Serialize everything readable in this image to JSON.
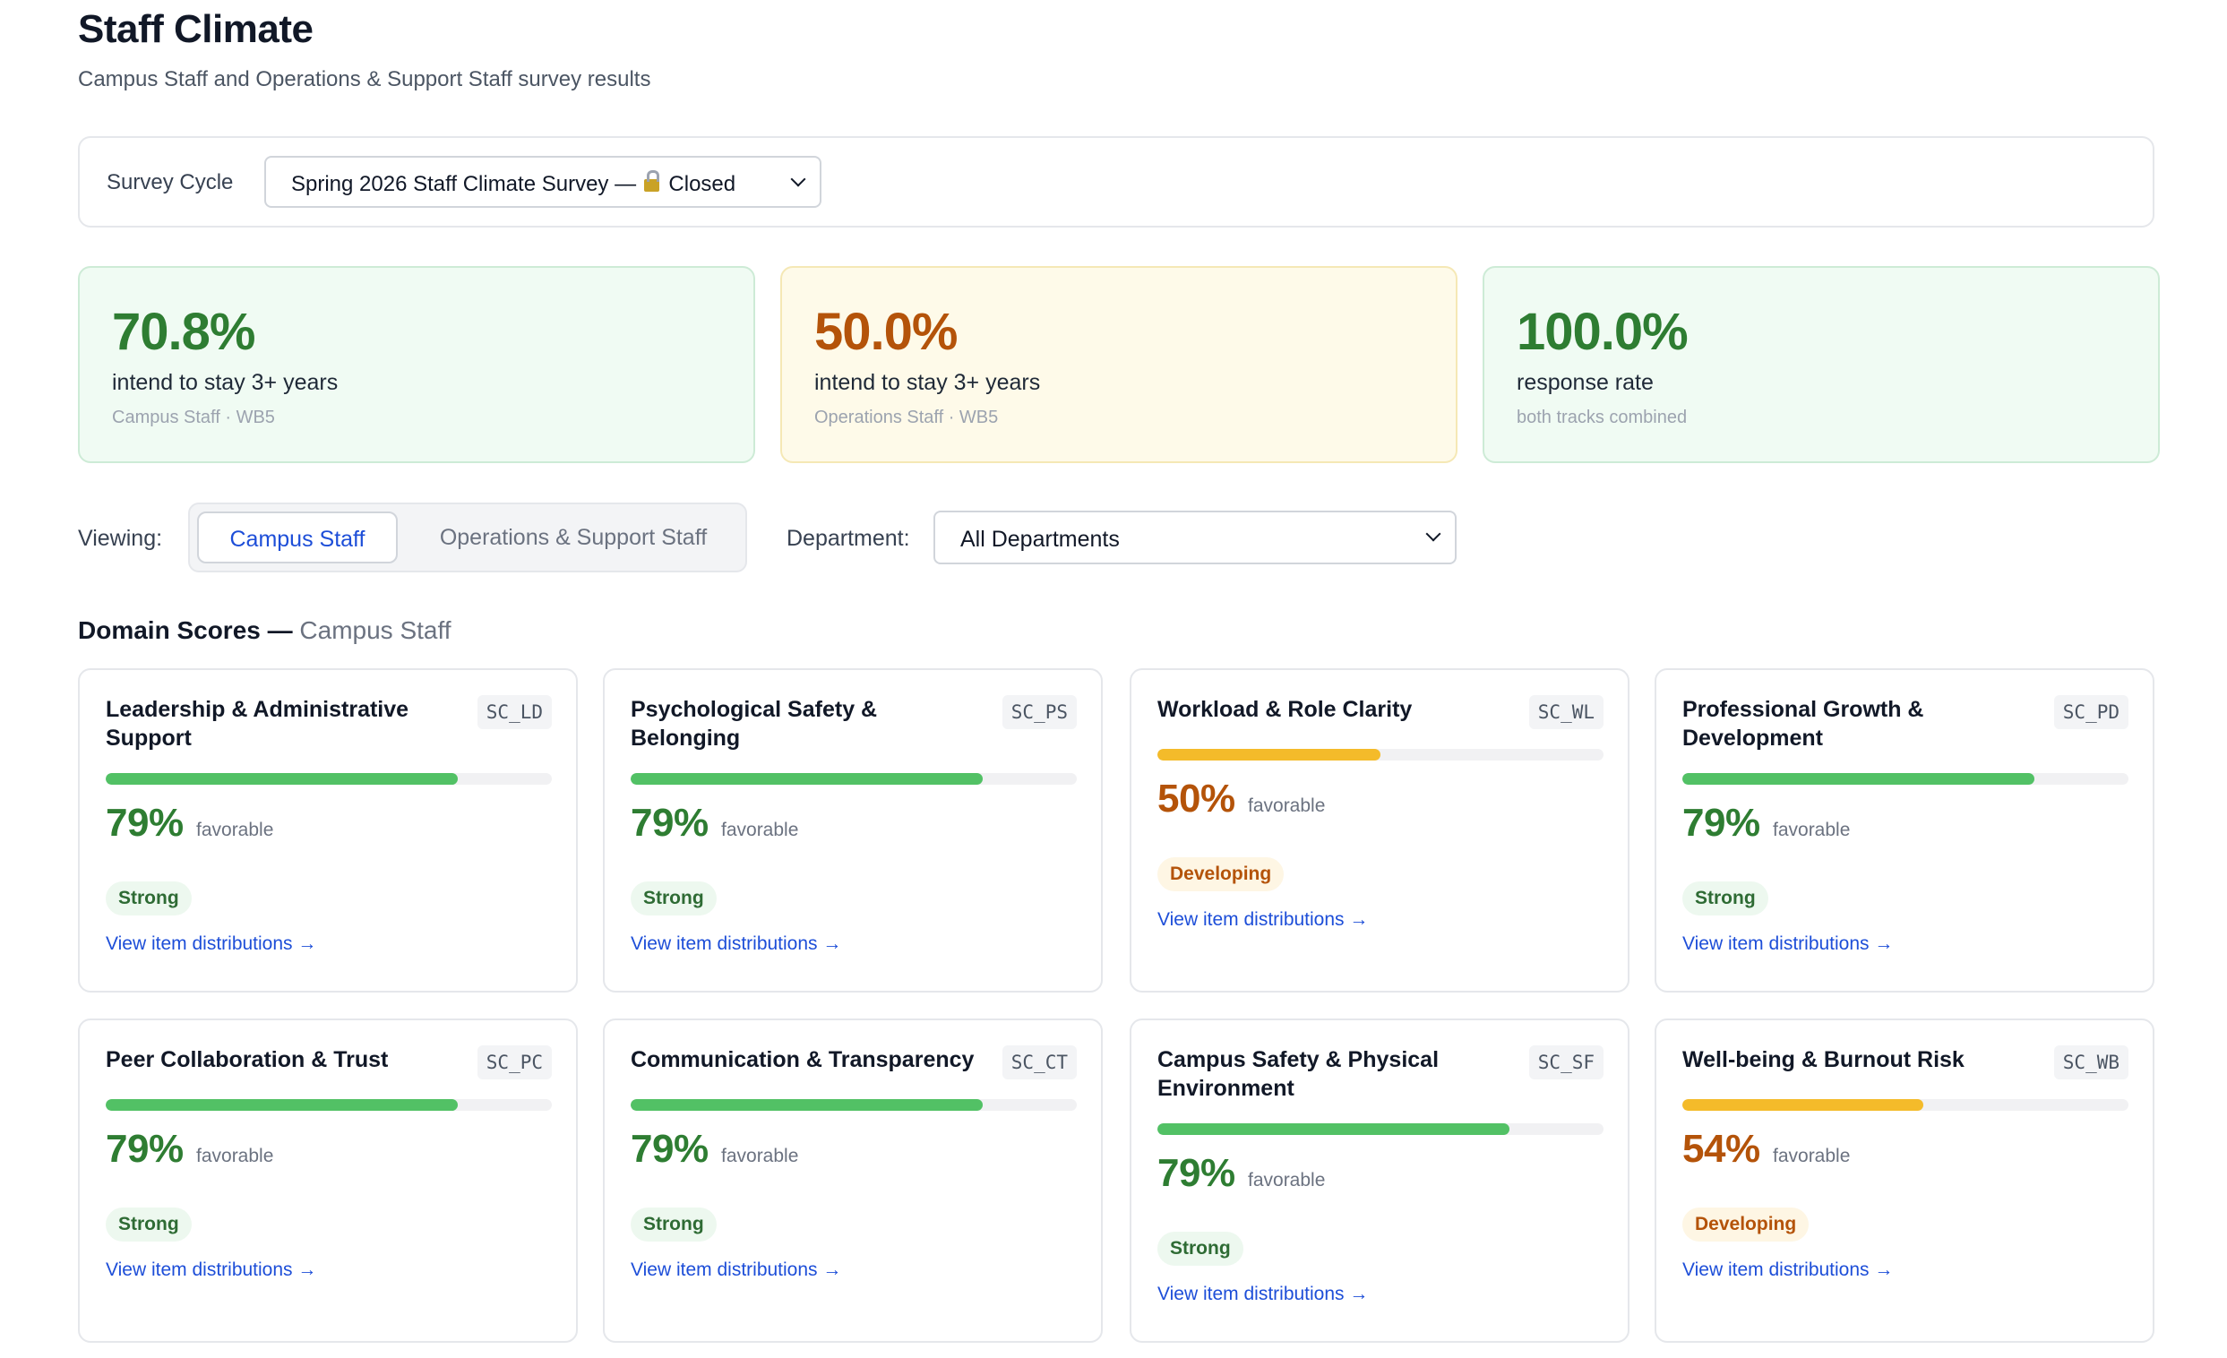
{
  "header": {
    "title": "Staff Climate",
    "subtitle": "Campus Staff and Operations & Support Staff survey results"
  },
  "survey_cycle": {
    "label": "Survey Cycle",
    "selected_prefix": "Spring 2026 Staff Climate Survey — ",
    "status": "Closed",
    "status_icon": "lock-icon"
  },
  "stats": [
    {
      "value": "70.8%",
      "label": "intend to stay 3+ years",
      "sub": "Campus Staff · WB5",
      "tone": "green"
    },
    {
      "value": "50.0%",
      "label": "intend to stay 3+ years",
      "sub": "Operations Staff · WB5",
      "tone": "amber"
    },
    {
      "value": "100.0%",
      "label": "response rate",
      "sub": "both tracks combined",
      "tone": "green"
    }
  ],
  "filters": {
    "viewing_label": "Viewing:",
    "tabs": [
      {
        "label": "Campus Staff",
        "active": true
      },
      {
        "label": "Operations & Support Staff",
        "active": false
      }
    ],
    "department_label": "Department:",
    "department_selected": "All Departments"
  },
  "section": {
    "title": "Domain Scores — ",
    "track": "Campus Staff"
  },
  "colors": {
    "green": "#2e7d32",
    "amber": "#b45309",
    "link": "#1d4ed8",
    "bar_green": "#52c165",
    "bar_amber": "#f4bb2a"
  },
  "domains": [
    {
      "title": "Leadership & Administrative Support",
      "code": "SC_LD",
      "percent": 79,
      "percent_label": "79%",
      "favorable": "favorable",
      "status": "Strong",
      "tone": "green",
      "link": "View item distributions →"
    },
    {
      "title": "Psychological Safety & Belonging",
      "code": "SC_PS",
      "percent": 79,
      "percent_label": "79%",
      "favorable": "favorable",
      "status": "Strong",
      "tone": "green",
      "link": "View item distributions →"
    },
    {
      "title": "Workload & Role Clarity",
      "code": "SC_WL",
      "percent": 50,
      "percent_label": "50%",
      "favorable": "favorable",
      "status": "Developing",
      "tone": "amber",
      "link": "View item distributions →"
    },
    {
      "title": "Professional Growth & Development",
      "code": "SC_PD",
      "percent": 79,
      "percent_label": "79%",
      "favorable": "favorable",
      "status": "Strong",
      "tone": "green",
      "link": "View item distributions →"
    },
    {
      "title": "Peer Collaboration & Trust",
      "code": "SC_PC",
      "percent": 79,
      "percent_label": "79%",
      "favorable": "favorable",
      "status": "Strong",
      "tone": "green",
      "link": "View item distributions →"
    },
    {
      "title": "Communication & Transparency",
      "code": "SC_CT",
      "percent": 79,
      "percent_label": "79%",
      "favorable": "favorable",
      "status": "Strong",
      "tone": "green",
      "link": "View item distributions →"
    },
    {
      "title": "Campus Safety & Physical Environment",
      "code": "SC_SF",
      "percent": 79,
      "percent_label": "79%",
      "favorable": "favorable",
      "status": "Strong",
      "tone": "green",
      "link": "View item distributions →"
    },
    {
      "title": "Well-being & Burnout Risk",
      "code": "SC_WB",
      "percent": 54,
      "percent_label": "54%",
      "favorable": "favorable",
      "status": "Developing",
      "tone": "amber",
      "link": "View item distributions →"
    }
  ]
}
